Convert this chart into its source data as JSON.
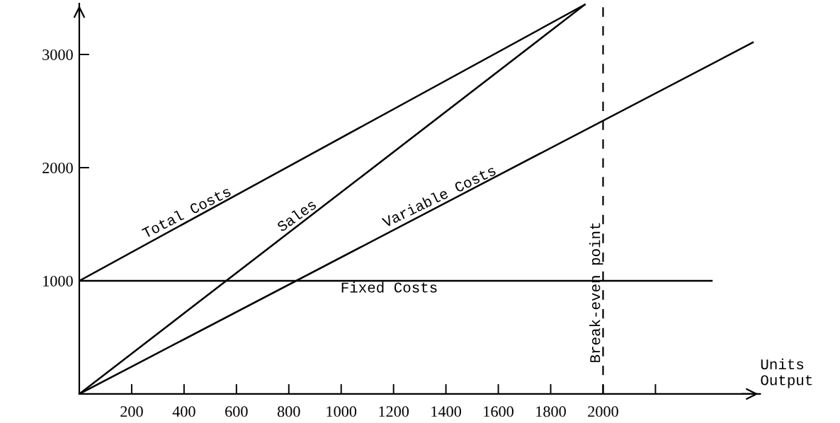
{
  "chart_data": {
    "type": "line",
    "xlabel": "Units\nOutput",
    "xlim": [
      0,
      2600
    ],
    "ylim": [
      0,
      3450
    ],
    "xticks": [
      200,
      400,
      600,
      800,
      1000,
      1200,
      1400,
      1600,
      1800,
      2000,
      {
        "value": 2200,
        "label": null
      }
    ],
    "yticks": [
      1000,
      2000,
      3000
    ],
    "series": [
      {
        "name": "Total Costs",
        "color": "#000000",
        "x": [
          0,
          1930
        ],
        "values": [
          1000,
          3440
        ]
      },
      {
        "name": "Sales",
        "color": "#000000",
        "x": [
          0,
          1930
        ],
        "values": [
          0,
          3440
        ]
      },
      {
        "name": "Variable Costs",
        "color": "#000000",
        "x": [
          0,
          2572
        ],
        "values": [
          0,
          3106
        ]
      },
      {
        "name": "Fixed Costs",
        "color": "#000000",
        "x": [
          0,
          2415
        ],
        "values": [
          1000,
          1000
        ]
      }
    ],
    "ref_lines": [
      {
        "axis": "x",
        "value": 2000,
        "label": "Break-even point",
        "color": "#000000",
        "line_style": "dashed"
      }
    ],
    "grid": false,
    "legend": false,
    "marker": "none",
    "line_style": "solid"
  }
}
